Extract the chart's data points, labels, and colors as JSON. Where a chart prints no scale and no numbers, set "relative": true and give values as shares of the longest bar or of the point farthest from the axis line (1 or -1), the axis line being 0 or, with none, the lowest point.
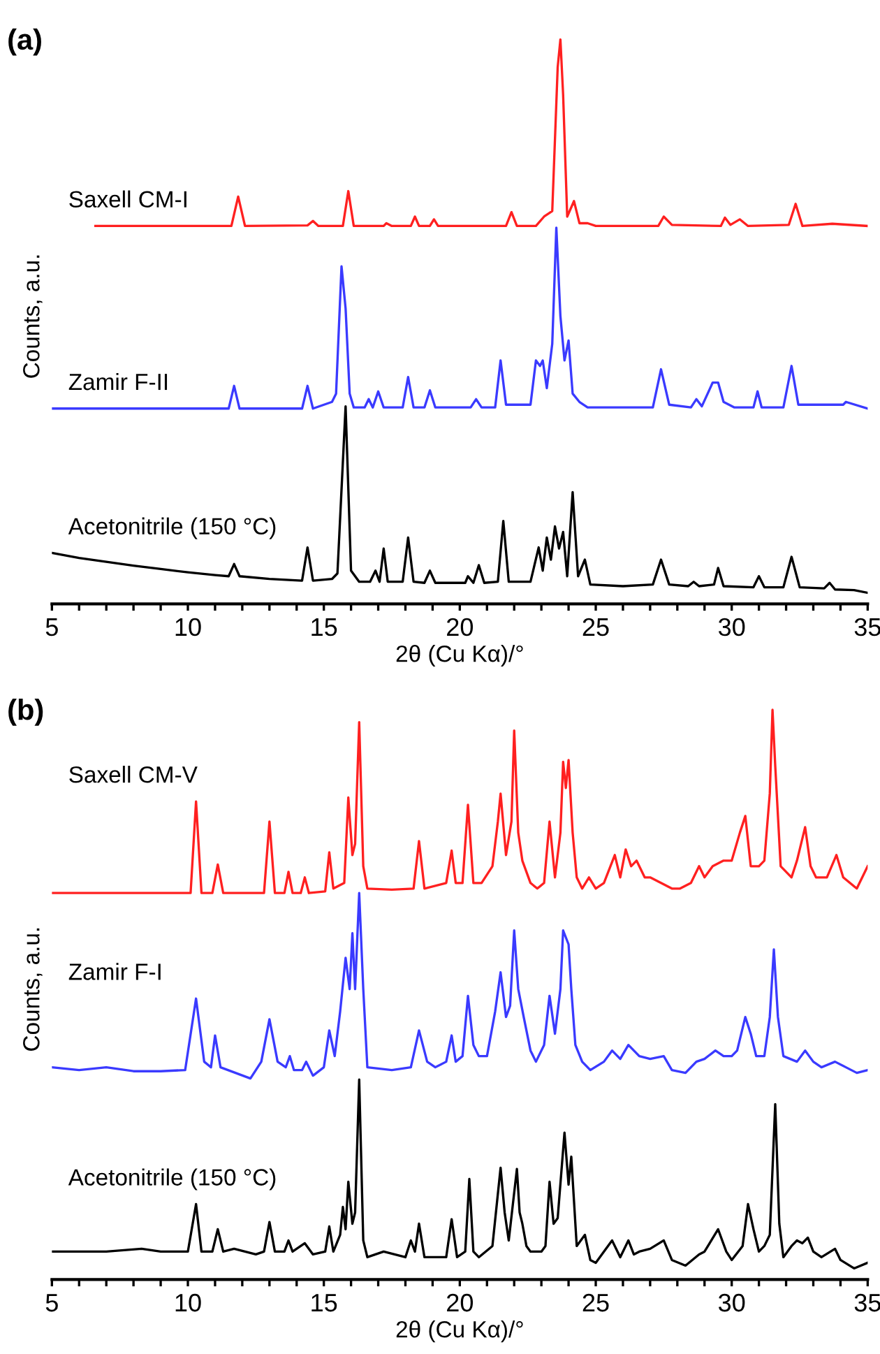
{
  "chart_data": [
    {
      "type": "line",
      "title": "(a)",
      "xlabel": "2θ (Cu Kα)/°",
      "ylabel": "Counts, a.u.",
      "relative": true,
      "tick_labels": "x",
      "xlim": [
        5,
        35
      ],
      "xticks": [
        5,
        {
          "value": 6,
          "label": null
        },
        {
          "value": 7,
          "label": null
        },
        {
          "value": 8,
          "label": null
        },
        {
          "value": 9,
          "label": null
        },
        10,
        {
          "value": 11,
          "label": null
        },
        {
          "value": 12,
          "label": null
        },
        {
          "value": 13,
          "label": null
        },
        {
          "value": 14,
          "label": null
        },
        15,
        {
          "value": 16,
          "label": null
        },
        {
          "value": 17,
          "label": null
        },
        {
          "value": 18,
          "label": null
        },
        {
          "value": 19,
          "label": null
        },
        20,
        {
          "value": 21,
          "label": null
        },
        {
          "value": 22,
          "label": null
        },
        {
          "value": 23,
          "label": null
        },
        {
          "value": 24,
          "label": null
        },
        25,
        {
          "value": 26,
          "label": null
        },
        {
          "value": 27,
          "label": null
        },
        {
          "value": 28,
          "label": null
        },
        {
          "value": 29,
          "label": null
        },
        30,
        {
          "value": 31,
          "label": null
        },
        {
          "value": 32,
          "label": null
        },
        {
          "value": 33,
          "label": null
        },
        {
          "value": 34,
          "label": null
        },
        35
      ],
      "series": [
        {
          "name": "Saxell CM-I",
          "color": "#ff2020",
          "x": [
            6.6,
            11.6,
            11.85,
            12.1,
            14.4,
            14.6,
            14.8,
            15.7,
            15.9,
            16.1,
            17.2,
            17.3,
            17.5,
            18.2,
            18.35,
            18.5,
            18.9,
            19.05,
            19.2,
            21.7,
            21.9,
            22.1,
            22.8,
            23.1,
            23.4,
            23.6,
            23.7,
            23.8,
            23.95,
            24.2,
            24.4,
            24.7,
            25,
            27.3,
            27.5,
            27.8,
            29.6,
            29.75,
            29.95,
            30.3,
            30.6,
            32.1,
            32.35,
            32.6,
            33.7,
            35
          ],
          "values": [
            0.663,
            0.663,
            0.716,
            0.663,
            0.664,
            0.672,
            0.663,
            0.663,
            0.726,
            0.663,
            0.663,
            0.668,
            0.663,
            0.663,
            0.68,
            0.663,
            0.663,
            0.675,
            0.663,
            0.663,
            0.688,
            0.663,
            0.663,
            0.68,
            0.69,
            0.95,
            1.0,
            0.9,
            0.68,
            0.708,
            0.668,
            0.668,
            0.663,
            0.663,
            0.68,
            0.665,
            0.663,
            0.678,
            0.665,
            0.675,
            0.663,
            0.665,
            0.703,
            0.663,
            0.667,
            0.663
          ]
        },
        {
          "name": "Zamir F-II",
          "color": "#3a3aff",
          "x": [
            5,
            11.5,
            11.7,
            11.9,
            14.2,
            14.4,
            14.6,
            15.3,
            15.45,
            15.65,
            15.8,
            15.95,
            16.1,
            16.5,
            16.65,
            16.8,
            17.0,
            17.2,
            17.9,
            18.1,
            18.3,
            18.7,
            18.9,
            19.1,
            20.4,
            20.6,
            20.8,
            21.3,
            21.5,
            21.7,
            22.6,
            22.8,
            22.95,
            23.05,
            23.2,
            23.4,
            23.55,
            23.7,
            23.85,
            24.0,
            24.15,
            24.4,
            24.7,
            27.1,
            27.4,
            27.7,
            28.5,
            28.7,
            28.9,
            29.3,
            29.5,
            29.7,
            30.1,
            30.8,
            30.95,
            31.1,
            31.9,
            32.2,
            32.45,
            33.4,
            34.1,
            34.2,
            35
          ],
          "values": [
            0.333,
            0.333,
            0.374,
            0.333,
            0.333,
            0.374,
            0.333,
            0.345,
            0.36,
            0.59,
            0.514,
            0.36,
            0.335,
            0.335,
            0.35,
            0.335,
            0.364,
            0.335,
            0.335,
            0.39,
            0.335,
            0.335,
            0.366,
            0.335,
            0.335,
            0.35,
            0.335,
            0.335,
            0.42,
            0.34,
            0.34,
            0.42,
            0.41,
            0.42,
            0.37,
            0.45,
            0.66,
            0.5,
            0.42,
            0.456,
            0.36,
            0.345,
            0.335,
            0.335,
            0.404,
            0.34,
            0.335,
            0.35,
            0.337,
            0.38,
            0.38,
            0.345,
            0.335,
            0.335,
            0.364,
            0.335,
            0.335,
            0.41,
            0.34,
            0.34,
            0.34,
            0.345,
            0.333
          ]
        },
        {
          "name": "Acetonitrile (150 °C)",
          "color": "#000000",
          "x": [
            5,
            6,
            7,
            8,
            9,
            10,
            11,
            11.5,
            11.7,
            11.9,
            13,
            14.2,
            14.4,
            14.6,
            15.3,
            15.5,
            15.8,
            16.0,
            16.3,
            16.7,
            16.9,
            17.05,
            17.2,
            17.35,
            17.9,
            18.1,
            18.3,
            18.7,
            18.9,
            19.1,
            20.2,
            20.3,
            20.5,
            20.7,
            20.9,
            21.4,
            21.6,
            21.8,
            22.6,
            22.9,
            23.05,
            23.2,
            23.35,
            23.5,
            23.65,
            23.8,
            23.95,
            24.15,
            24.35,
            24.6,
            24.8,
            26,
            27.1,
            27.4,
            27.7,
            28.4,
            28.6,
            28.8,
            29.35,
            29.5,
            29.7,
            30.8,
            31,
            31.2,
            31.9,
            32.2,
            32.5,
            33.4,
            33.6,
            33.8,
            34.5,
            35
          ],
          "values": [
            0.072,
            0.063,
            0.056,
            0.049,
            0.043,
            0.037,
            0.032,
            0.03,
            0.052,
            0.03,
            0.025,
            0.022,
            0.082,
            0.022,
            0.025,
            0.035,
            0.337,
            0.04,
            0.02,
            0.02,
            0.04,
            0.02,
            0.08,
            0.02,
            0.02,
            0.1,
            0.02,
            0.018,
            0.04,
            0.018,
            0.018,
            0.03,
            0.018,
            0.05,
            0.018,
            0.02,
            0.13,
            0.02,
            0.02,
            0.082,
            0.04,
            0.1,
            0.06,
            0.12,
            0.08,
            0.11,
            0.03,
            0.182,
            0.03,
            0.06,
            0.015,
            0.012,
            0.015,
            0.06,
            0.015,
            0.012,
            0.02,
            0.012,
            0.015,
            0.045,
            0.012,
            0.01,
            0.03,
            0.01,
            0.01,
            0.065,
            0.01,
            0.008,
            0.018,
            0.006,
            0.005,
            0.0
          ]
        }
      ]
    },
    {
      "type": "line",
      "title": "(b)",
      "xlabel": "2θ (Cu Kα)/°",
      "ylabel": "Counts, a.u.",
      "relative": true,
      "tick_labels": "x",
      "xlim": [
        5,
        35
      ],
      "xticks": [
        5,
        {
          "value": 6,
          "label": null
        },
        {
          "value": 7,
          "label": null
        },
        {
          "value": 8,
          "label": null
        },
        {
          "value": 9,
          "label": null
        },
        10,
        {
          "value": 11,
          "label": null
        },
        {
          "value": 12,
          "label": null
        },
        {
          "value": 13,
          "label": null
        },
        {
          "value": 14,
          "label": null
        },
        15,
        {
          "value": 16,
          "label": null
        },
        {
          "value": 17,
          "label": null
        },
        {
          "value": 18,
          "label": null
        },
        {
          "value": 19,
          "label": null
        },
        20,
        {
          "value": 21,
          "label": null
        },
        {
          "value": 22,
          "label": null
        },
        {
          "value": 23,
          "label": null
        },
        {
          "value": 24,
          "label": null
        },
        25,
        {
          "value": 26,
          "label": null
        },
        {
          "value": 27,
          "label": null
        },
        {
          "value": 28,
          "label": null
        },
        {
          "value": 29,
          "label": null
        },
        30,
        {
          "value": 31,
          "label": null
        },
        {
          "value": 32,
          "label": null
        },
        {
          "value": 33,
          "label": null
        },
        {
          "value": 34,
          "label": null
        },
        35
      ],
      "series": [
        {
          "name": "Saxell CM-V",
          "color": "#ff2020",
          "x": [
            5,
            10.1,
            10.3,
            10.5,
            10.9,
            11.1,
            11.3,
            12.8,
            13.0,
            13.2,
            13.55,
            13.7,
            13.85,
            14.15,
            14.3,
            14.45,
            15.05,
            15.2,
            15.35,
            15.75,
            15.9,
            16.05,
            16.15,
            16.3,
            16.45,
            16.6,
            17.5,
            18.3,
            18.5,
            18.7,
            19.5,
            19.7,
            19.85,
            20.1,
            20.3,
            20.5,
            20.8,
            21.2,
            21.4,
            21.5,
            21.7,
            21.9,
            22.0,
            22.15,
            22.3,
            22.6,
            22.85,
            23.1,
            23.3,
            23.5,
            23.7,
            23.8,
            23.9,
            24.0,
            24.15,
            24.3,
            24.5,
            24.75,
            25.0,
            25.3,
            25.7,
            25.9,
            26.1,
            26.3,
            26.5,
            26.8,
            27.0,
            27.4,
            27.8,
            28.1,
            28.5,
            28.8,
            29.0,
            29.3,
            29.7,
            30.0,
            30.3,
            30.5,
            30.7,
            31.0,
            31.2,
            31.4,
            31.5,
            31.6,
            31.8,
            32.2,
            32.4,
            32.7,
            32.9,
            33.1,
            33.5,
            33.85,
            34.1,
            34.6,
            35
          ],
          "values": [
            0.672,
            0.672,
            0.836,
            0.672,
            0.672,
            0.723,
            0.672,
            0.672,
            0.8,
            0.672,
            0.672,
            0.71,
            0.672,
            0.672,
            0.7,
            0.672,
            0.675,
            0.745,
            0.68,
            0.69,
            0.843,
            0.74,
            0.76,
            0.978,
            0.72,
            0.68,
            0.678,
            0.68,
            0.765,
            0.68,
            0.69,
            0.748,
            0.69,
            0.69,
            0.83,
            0.69,
            0.69,
            0.72,
            0.8,
            0.85,
            0.74,
            0.8,
            0.963,
            0.78,
            0.73,
            0.69,
            0.68,
            0.69,
            0.8,
            0.7,
            0.78,
            0.907,
            0.86,
            0.91,
            0.78,
            0.7,
            0.68,
            0.7,
            0.68,
            0.69,
            0.74,
            0.7,
            0.75,
            0.72,
            0.73,
            0.7,
            0.7,
            0.69,
            0.68,
            0.68,
            0.69,
            0.72,
            0.7,
            0.72,
            0.73,
            0.73,
            0.78,
            0.81,
            0.72,
            0.72,
            0.73,
            0.85,
            1.0,
            0.9,
            0.72,
            0.7,
            0.73,
            0.79,
            0.72,
            0.7,
            0.7,
            0.74,
            0.7,
            0.68,
            0.72
          ]
        },
        {
          "name": "Zamir F-I",
          "color": "#3a3aff",
          "x": [
            5,
            6,
            7,
            8,
            9,
            9.9,
            10.3,
            10.6,
            10.85,
            11.0,
            11.2,
            12.3,
            12.7,
            13.0,
            13.3,
            13.6,
            13.75,
            13.9,
            14.2,
            14.35,
            14.6,
            15.0,
            15.2,
            15.4,
            15.6,
            15.8,
            15.95,
            16.05,
            16.15,
            16.3,
            16.45,
            16.6,
            17.5,
            18.2,
            18.5,
            18.8,
            19.1,
            19.5,
            19.7,
            19.85,
            20.1,
            20.3,
            20.5,
            20.7,
            21.0,
            21.3,
            21.5,
            21.7,
            21.85,
            22.0,
            22.15,
            22.35,
            22.6,
            22.8,
            23.1,
            23.3,
            23.5,
            23.7,
            23.8,
            24.0,
            24.1,
            24.25,
            24.5,
            24.8,
            25.3,
            25.6,
            25.9,
            26.2,
            26.6,
            27.0,
            27.5,
            27.8,
            28.3,
            28.7,
            29.0,
            29.4,
            29.7,
            30.0,
            30.2,
            30.5,
            30.7,
            30.9,
            31.2,
            31.4,
            31.55,
            31.7,
            31.9,
            32.4,
            32.7,
            33.0,
            33.3,
            33.8,
            34.2,
            34.6,
            35
          ],
          "values": [
            0.36,
            0.355,
            0.36,
            0.353,
            0.353,
            0.355,
            0.483,
            0.37,
            0.36,
            0.417,
            0.36,
            0.34,
            0.37,
            0.446,
            0.37,
            0.36,
            0.38,
            0.355,
            0.355,
            0.37,
            0.345,
            0.36,
            0.426,
            0.38,
            0.46,
            0.556,
            0.5,
            0.6,
            0.5,
            0.672,
            0.5,
            0.36,
            0.355,
            0.36,
            0.426,
            0.37,
            0.36,
            0.37,
            0.417,
            0.37,
            0.38,
            0.488,
            0.4,
            0.38,
            0.38,
            0.46,
            0.53,
            0.45,
            0.47,
            0.605,
            0.5,
            0.45,
            0.39,
            0.37,
            0.4,
            0.488,
            0.42,
            0.5,
            0.605,
            0.58,
            0.5,
            0.4,
            0.37,
            0.355,
            0.37,
            0.39,
            0.375,
            0.4,
            0.38,
            0.375,
            0.38,
            0.355,
            0.35,
            0.37,
            0.375,
            0.39,
            0.38,
            0.38,
            0.39,
            0.45,
            0.42,
            0.38,
            0.38,
            0.45,
            0.571,
            0.45,
            0.38,
            0.37,
            0.39,
            0.37,
            0.36,
            0.37,
            0.36,
            0.35,
            0.355
          ]
        },
        {
          "name": "Acetonitrile (150 °C)",
          "color": "#000000",
          "x": [
            5,
            7,
            8.3,
            9,
            10,
            10.3,
            10.5,
            10.9,
            11.1,
            11.3,
            11.7,
            12.5,
            12.8,
            13.0,
            13.2,
            13.55,
            13.7,
            13.85,
            14.3,
            14.6,
            15.05,
            15.2,
            15.35,
            15.6,
            15.7,
            15.8,
            15.9,
            16.05,
            16.15,
            16.3,
            16.45,
            16.6,
            17.2,
            18.0,
            18.2,
            18.35,
            18.5,
            18.7,
            19.0,
            19.5,
            19.7,
            19.9,
            20.2,
            20.35,
            20.5,
            20.7,
            21.2,
            21.5,
            21.65,
            21.8,
            22.1,
            22.2,
            22.3,
            22.45,
            22.6,
            23.0,
            23.15,
            23.3,
            23.45,
            23.6,
            23.85,
            24.0,
            24.1,
            24.2,
            24.3,
            24.6,
            24.8,
            25.0,
            25.6,
            25.9,
            26.2,
            26.4,
            26.6,
            27.0,
            27.5,
            27.8,
            28.3,
            28.8,
            29.0,
            29.5,
            29.8,
            30.0,
            30.4,
            30.6,
            30.8,
            31.0,
            31.2,
            31.4,
            31.6,
            31.75,
            31.9,
            32.2,
            32.4,
            32.6,
            32.8,
            33.0,
            33.3,
            33.8,
            34.0,
            34.5,
            35
          ],
          "values": [
            0.03,
            0.03,
            0.035,
            0.03,
            0.03,
            0.115,
            0.03,
            0.03,
            0.07,
            0.03,
            0.035,
            0.025,
            0.03,
            0.083,
            0.03,
            0.03,
            0.05,
            0.03,
            0.045,
            0.025,
            0.03,
            0.075,
            0.03,
            0.06,
            0.11,
            0.07,
            0.155,
            0.08,
            0.1,
            0.338,
            0.05,
            0.02,
            0.03,
            0.02,
            0.05,
            0.03,
            0.08,
            0.02,
            0.02,
            0.02,
            0.088,
            0.02,
            0.03,
            0.16,
            0.03,
            0.02,
            0.04,
            0.18,
            0.1,
            0.05,
            0.178,
            0.1,
            0.08,
            0.04,
            0.03,
            0.03,
            0.04,
            0.155,
            0.08,
            0.09,
            0.243,
            0.15,
            0.2,
            0.12,
            0.04,
            0.06,
            0.015,
            0.01,
            0.05,
            0.02,
            0.05,
            0.025,
            0.03,
            0.035,
            0.05,
            0.015,
            0.005,
            0.025,
            0.03,
            0.07,
            0.03,
            0.015,
            0.04,
            0.115,
            0.07,
            0.03,
            0.04,
            0.06,
            0.294,
            0.08,
            0.02,
            0.04,
            0.05,
            0.045,
            0.055,
            0.03,
            0.02,
            0.035,
            0.015,
            0.0,
            0.01
          ]
        }
      ]
    }
  ]
}
